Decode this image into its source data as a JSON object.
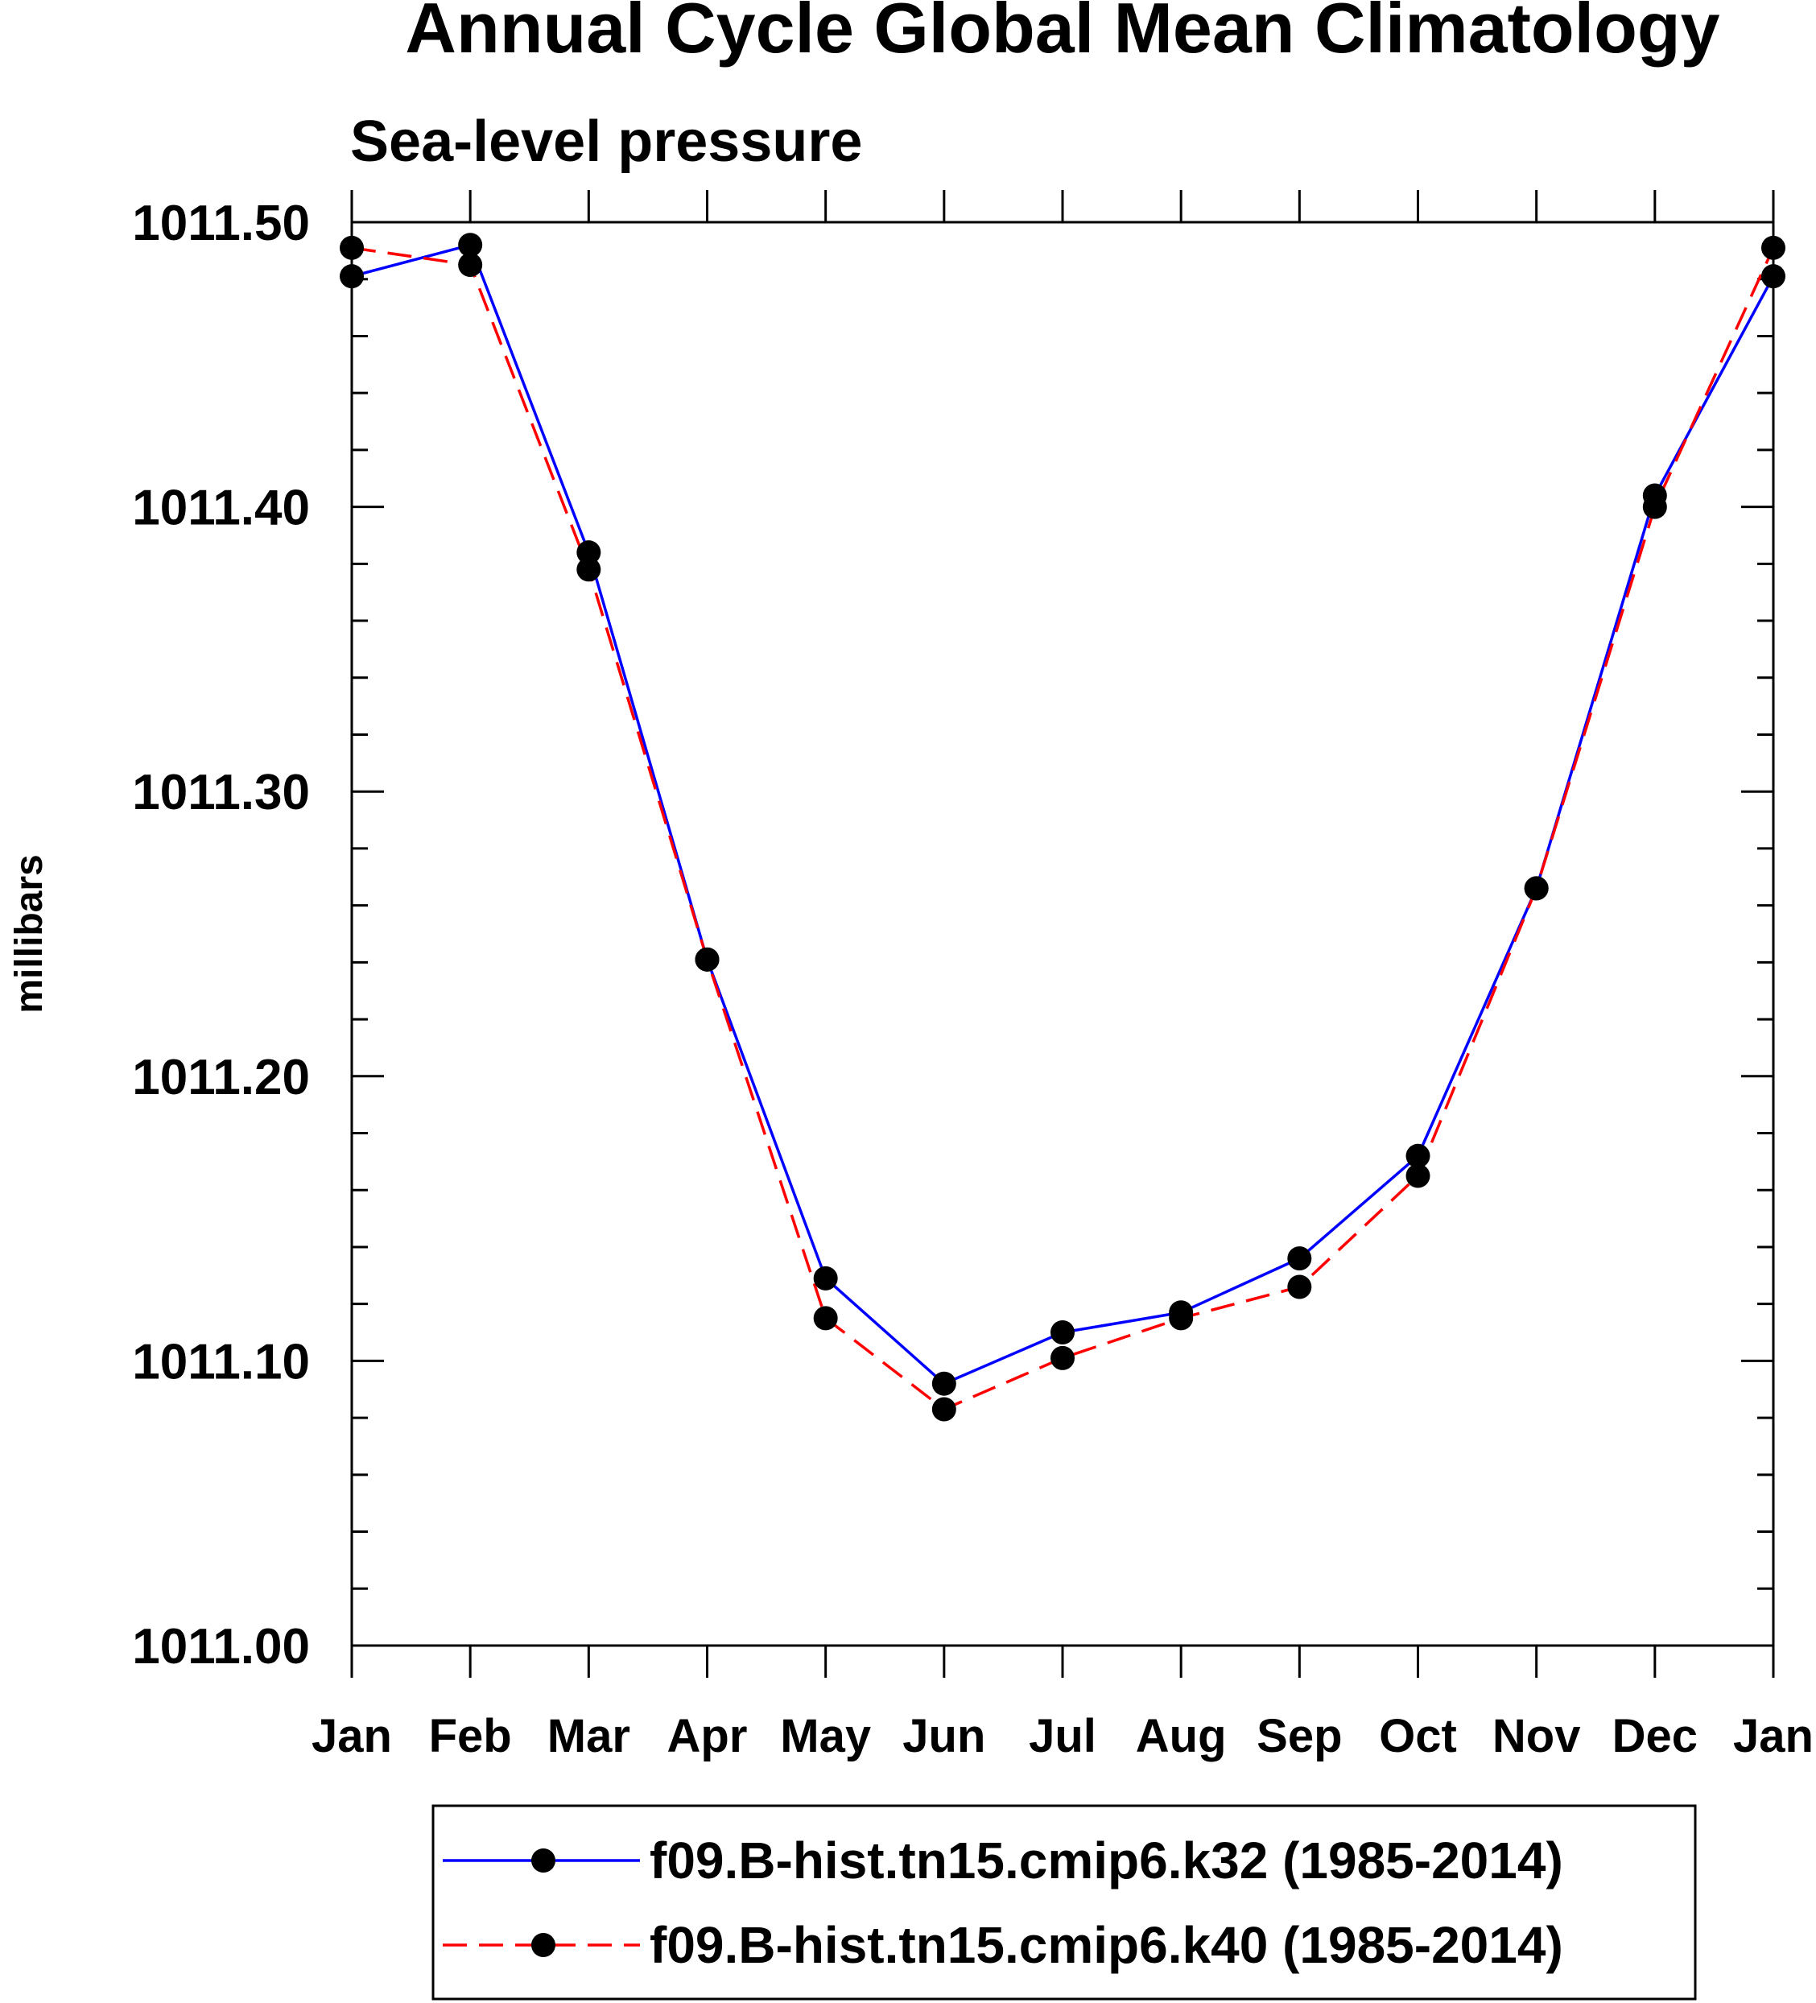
{
  "chart_data": {
    "type": "line",
    "title": "Annual Cycle Global Mean Climatology",
    "subtitle": "Sea-level pressure",
    "xlabel": "",
    "ylabel": "millibars",
    "categories": [
      "Jan",
      "Feb",
      "Mar",
      "Apr",
      "May",
      "Jun",
      "Jul",
      "Aug",
      "Sep",
      "Oct",
      "Nov",
      "Dec",
      "Jan"
    ],
    "ylim": [
      1011.0,
      1011.5
    ],
    "yticks": [
      1011.0,
      1011.1,
      1011.2,
      1011.3,
      1011.4,
      1011.5
    ],
    "ytick_labels": [
      "1011.00",
      "1011.10",
      "1011.20",
      "1011.30",
      "1011.40",
      "1011.50"
    ],
    "series": [
      {
        "name": "f09.B-hist.tn15.cmip6.k32 (1985-2014)",
        "color": "#0000ff",
        "line_style": "solid",
        "marker": "filled-circle",
        "values": [
          1011.481,
          1011.492,
          1011.384,
          1011.241,
          1011.129,
          1011.092,
          1011.11,
          1011.117,
          1011.136,
          1011.172,
          1011.266,
          1011.404,
          1011.481
        ]
      },
      {
        "name": "f09.B-hist.tn15.cmip6.k40 (1985-2014)",
        "color": "#ff0000",
        "line_style": "dashed",
        "marker": "filled-circle",
        "values": [
          1011.491,
          1011.485,
          1011.378,
          1011.241,
          1011.115,
          1011.083,
          1011.101,
          1011.115,
          1011.126,
          1011.165,
          1011.266,
          1011.4,
          1011.491
        ]
      }
    ],
    "legend_position": "bottom"
  }
}
